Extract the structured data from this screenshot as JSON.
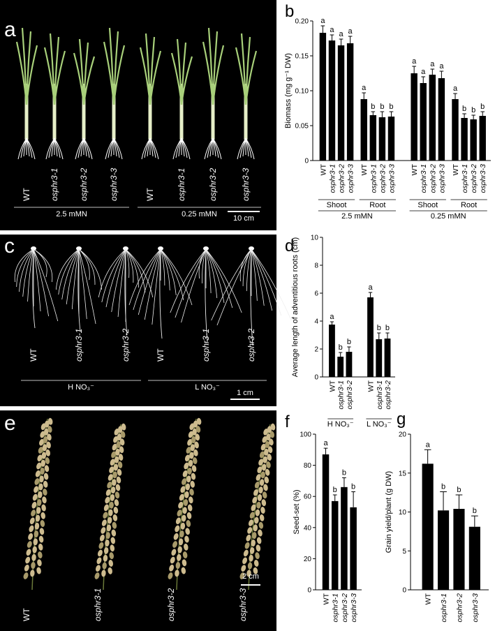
{
  "chart_data": [
    {
      "type": "bar",
      "panel": "b",
      "y_label": "Biomass (mg g⁻¹ DW)",
      "color": "#000000",
      "ylim": [
        0,
        0.2
      ],
      "yticks": [
        0,
        0.05,
        {
          "value": 0.1,
          "label": "0.10"
        },
        0.15,
        {
          "value": 0.2,
          "label": "0.20"
        }
      ],
      "conditions": [
        {
          "label": "2.5 mMN",
          "groups": [
            {
              "label": "Shoot",
              "categories": [
                "WT",
                "osphr3-1",
                "osphr3-2",
                "osphr3-3"
              ],
              "values": [
                0.183,
                0.172,
                0.165,
                0.168
              ],
              "errors": [
                0.01,
                0.008,
                0.009,
                0.01
              ],
              "letters": [
                "a",
                "a",
                "a",
                "a"
              ]
            },
            {
              "label": "Root",
              "categories": [
                "WT",
                "osphr3-1",
                "osphr3-2",
                "osphr3-3"
              ],
              "values": [
                0.088,
                0.065,
                0.062,
                0.063
              ],
              "errors": [
                0.009,
                0.005,
                0.008,
                0.007
              ],
              "letters": [
                "a",
                "b",
                "b",
                "b"
              ]
            }
          ]
        },
        {
          "label": "0.25 mMN",
          "groups": [
            {
              "label": "Shoot",
              "categories": [
                "WT",
                "osphr3-1",
                "osphr3-2",
                "osphr3-3"
              ],
              "values": [
                0.125,
                0.111,
                0.123,
                0.118
              ],
              "errors": [
                0.01,
                0.009,
                0.008,
                0.01
              ],
              "letters": [
                "a",
                "a",
                "a",
                "a"
              ]
            },
            {
              "label": "Root",
              "categories": [
                "WT",
                "osphr3-1",
                "osphr3-2",
                "osphr3-3"
              ],
              "values": [
                0.088,
                0.061,
                0.059,
                0.064
              ],
              "errors": [
                0.008,
                0.006,
                0.006,
                0.006
              ],
              "letters": [
                "a",
                "b",
                "b",
                "b"
              ]
            }
          ]
        }
      ]
    },
    {
      "type": "bar",
      "panel": "d",
      "y_label": "Average length of adventitious roots (cm)",
      "color": "#000000",
      "ylim": [
        0,
        10
      ],
      "yticks": [
        0,
        2,
        4,
        6,
        8,
        10
      ],
      "conditions": [
        {
          "label": "H NO₃⁻",
          "groups": [
            {
              "categories": [
                "WT",
                "osphr3-1",
                "osphr3-2"
              ],
              "values": [
                3.75,
                1.45,
                1.8
              ],
              "errors": [
                0.2,
                0.3,
                0.35
              ],
              "letters": [
                "a",
                "b",
                "b"
              ]
            }
          ]
        },
        {
          "label": "L NO₃⁻",
          "groups": [
            {
              "categories": [
                "WT",
                "osphr3-1",
                "osphr3-2"
              ],
              "values": [
                5.7,
                2.7,
                2.75
              ],
              "errors": [
                0.35,
                0.45,
                0.4
              ],
              "letters": [
                "a",
                "b",
                "b"
              ]
            }
          ]
        }
      ]
    },
    {
      "type": "bar",
      "panel": "f",
      "y_label": "Seed-set (%)",
      "color": "#000000",
      "ylim": [
        0,
        100
      ],
      "yticks": [
        0,
        20,
        40,
        60,
        80,
        100
      ],
      "conditions": [
        {
          "groups": [
            {
              "categories": [
                "WT",
                "osphr3-1",
                "osphr3-2",
                "osphr3-3"
              ],
              "values": [
                87,
                57,
                66,
                53
              ],
              "errors": [
                4,
                4,
                6,
                10
              ],
              "letters": [
                "a",
                "b",
                "b",
                "b"
              ]
            }
          ]
        }
      ]
    },
    {
      "type": "bar",
      "panel": "g",
      "y_label": "Grain yield/plant (g DW)",
      "color": "#000000",
      "ylim": [
        0,
        20
      ],
      "yticks": [
        0,
        5,
        10,
        15,
        20
      ],
      "conditions": [
        {
          "groups": [
            {
              "categories": [
                "WT",
                "osphr3-1",
                "osphr3-2",
                "osphr3-3"
              ],
              "values": [
                16.2,
                10.2,
                10.4,
                8.1
              ],
              "errors": [
                1.8,
                2.4,
                1.8,
                1.4
              ],
              "letters": [
                "a",
                "b",
                "b",
                "b"
              ]
            }
          ]
        }
      ]
    }
  ],
  "photos": [
    {
      "panel": "a",
      "scale": "10 cm",
      "conditions": [
        {
          "label": "2.5 mMN",
          "samples": [
            "WT",
            "osphr3-1",
            "osphr3-2",
            "osphr3-3"
          ]
        },
        {
          "label": "0.25 mMN",
          "samples": [
            "WT",
            "osphr3-1",
            "osphr3-2",
            "osphr3-3"
          ]
        }
      ]
    },
    {
      "panel": "c",
      "scale": "1 cm",
      "conditions": [
        {
          "label": "H NO₃⁻",
          "samples": [
            "WT",
            "osphr3-1",
            "osphr3-2"
          ]
        },
        {
          "label": "L NO₃⁻",
          "samples": [
            "WT",
            "osphr3-1",
            "osphr3-2"
          ]
        }
      ]
    },
    {
      "panel": "e",
      "scale": "2 cm",
      "conditions": [
        {
          "samples": [
            "WT",
            "osphr3-1",
            "osphr3-2",
            "osphr3-3"
          ]
        }
      ]
    }
  ]
}
